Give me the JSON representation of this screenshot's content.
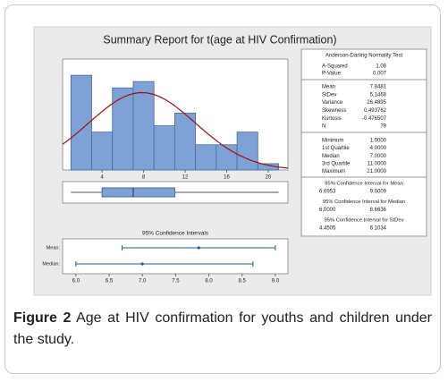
{
  "figure": {
    "title": "Summary Report for t(age at HIV Confirmation)",
    "histogram": {
      "type": "histogram",
      "bins": [
        1,
        3,
        5,
        7,
        9,
        11,
        13,
        15,
        17,
        19,
        21
      ],
      "counts": [
        15,
        6,
        13,
        14,
        7,
        9,
        4,
        4,
        6,
        1
      ],
      "color": "#7ea1d6",
      "curve_color": "#a01010",
      "xlim": [
        0.2,
        21.9
      ],
      "xticks": [
        4,
        8,
        12,
        16,
        20
      ]
    },
    "stats": {
      "test_title": "Anderson-Darling Normality Test",
      "test": [
        {
          "name": "A-Squared",
          "value": 1.08
        },
        {
          "name": "P-Value",
          "value": 0.007
        }
      ],
      "moments": [
        {
          "name": "Mean",
          "value": 7.8481
        },
        {
          "name": "StDev",
          "value": 5.1468
        },
        {
          "name": "Variance",
          "value": 26.4895
        },
        {
          "name": "Skewness",
          "value": 0.493762
        },
        {
          "name": "Kurtosis",
          "value": -0.476507
        },
        {
          "name": "N",
          "value": 79
        }
      ],
      "quartiles": [
        {
          "name": "Minimum",
          "value": {
            "value": 1,
            "label": "1.0000"
          }
        },
        {
          "name": "1st Quartile",
          "value": {
            "value": 4,
            "label": "4.0000"
          }
        },
        {
          "name": "Median",
          "value": {
            "value": 7,
            "label": "7.0000"
          }
        },
        {
          "name": "3rd Quartile",
          "value": {
            "value": 11,
            "label": "11.0000"
          }
        },
        {
          "name": "Maximum",
          "value": {
            "value": 21,
            "label": "21.0000"
          }
        }
      ],
      "intervals": [
        {
          "title": "95% Confidence Interval for Mean",
          "low": 6.6953,
          "high": 9.0009
        },
        {
          "title": "95% Confidence Interval for Median",
          "low": {
            "value": 6,
            "label": "6.0000"
          },
          "high": 8.6636
        },
        {
          "title": "95% Confidence Interval for StDev",
          "low": 4.4505,
          "high": 6.1034
        }
      ]
    },
    "ci_plot": {
      "title": "95% Confidence Intervals",
      "rows": [
        "Mean:",
        "Median:"
      ],
      "color": "#1f5f8b",
      "xlim": [
        5.8,
        9.19
      ],
      "xticks": [
        {
          "value": 6,
          "label": "6.0"
        },
        {
          "value": 6.5,
          "label": "6.5"
        },
        {
          "value": 7,
          "label": "7.0"
        },
        {
          "value": 7.5,
          "label": "7.5"
        },
        {
          "value": 8,
          "label": "8.0"
        },
        {
          "value": 8.5,
          "label": "8.5"
        },
        {
          "value": 9,
          "label": "9.0"
        }
      ]
    },
    "caption": {
      "label": "Figure 2",
      "text": " Age at HIV confirmation for youths and children under the study."
    }
  }
}
